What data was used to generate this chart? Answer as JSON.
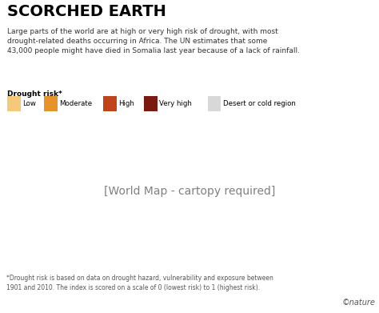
{
  "title": "SCORCHED EARTH",
  "subtitle": "Large parts of the world are at high or very high risk of drought, with most\ndrought-related deaths occurring in Africa. The UN estimates that some\n43,000 people might have died in Somalia last year because of a lack of rainfall.",
  "legend_label": "Drought risk*",
  "legend_items": [
    {
      "label": "Low",
      "color": "#F5C87A"
    },
    {
      "label": "Moderate",
      "color": "#E8922A"
    },
    {
      "label": "High",
      "color": "#C0431A"
    },
    {
      "label": "Very high",
      "color": "#7A1A10"
    },
    {
      "label": "Desert or cold region",
      "color": "#D8D8D8"
    }
  ],
  "footnote": "*Drought risk is based on data on drought hazard, vulnerability and exposure between\n1901 and 2010. The index is scored on a scale of 0 (lowest risk) to 1 (highest risk).",
  "credit": "©nature",
  "bg_color": "#FFFFFF",
  "title_color": "#000000",
  "subtitle_color": "#333333",
  "footnote_color": "#555555",
  "map_ocean_color": "#C8DFF0",
  "map_land_base": "#C8A882"
}
